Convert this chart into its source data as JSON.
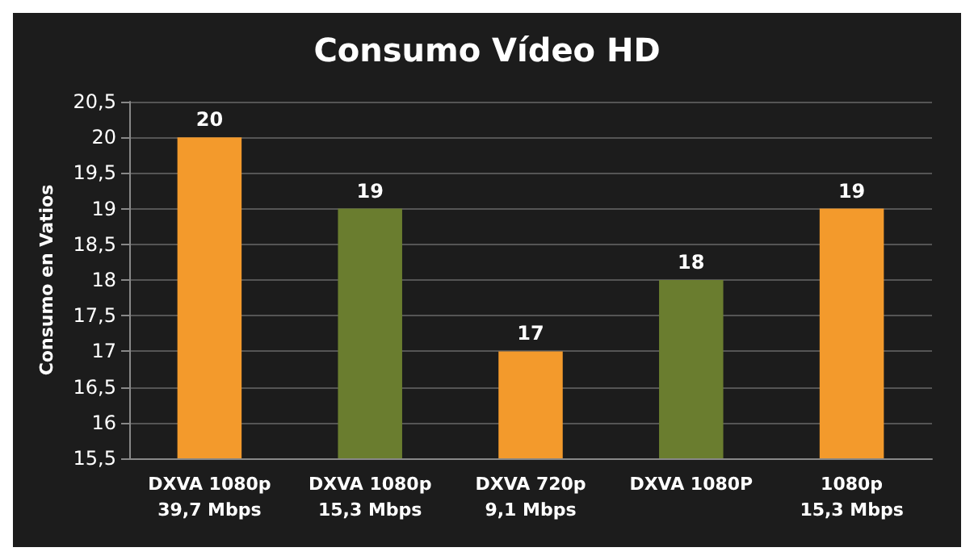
{
  "chart_data": {
    "type": "bar",
    "title": "Consumo Vídeo HD",
    "ylabel": "Consumo en Vatios",
    "categories": [
      "DXVA 1080p\n39,7 Mbps",
      "DXVA 1080p\n15,3 Mbps",
      "DXVA 720p\n9,1 Mbps",
      "DXVA 1080P",
      "1080p\n15,3 Mbps"
    ],
    "values": [
      20,
      19,
      17,
      18,
      19
    ],
    "colors": [
      "#f39a2c",
      "#6a7d2f",
      "#f39a2c",
      "#6a7d2f",
      "#f39a2c"
    ],
    "ylim": [
      15.5,
      20.5
    ],
    "yticks": [
      {
        "value": 15.5,
        "label": "15,5"
      },
      16,
      {
        "value": 16.5,
        "label": "16,5"
      },
      17,
      {
        "value": 17.5,
        "label": "17,5"
      },
      18,
      {
        "value": 18.5,
        "label": "18,5"
      },
      19,
      {
        "value": 19.5,
        "label": "19,5"
      },
      20,
      {
        "value": 20.5,
        "label": "20,5"
      }
    ],
    "grid": true,
    "data_labels": true
  }
}
